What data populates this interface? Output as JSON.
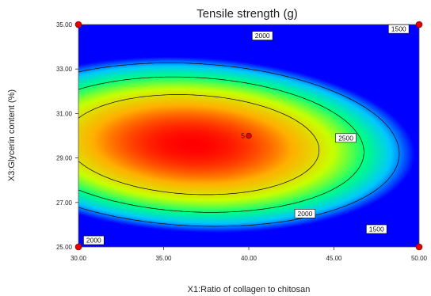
{
  "chart_data": {
    "type": "heatmap",
    "title": "Tensile strength (g)",
    "xlabel": "X1:Ratio of collagen to chitosan",
    "ylabel": "X3:Glycerin content (%)",
    "xlim": [
      30,
      50
    ],
    "ylim": [
      25,
      35
    ],
    "x_ticks": [
      "30.00",
      "35.00",
      "40.00",
      "45.00",
      "50.00"
    ],
    "y_ticks": [
      "25.00",
      "27.00",
      "29.00",
      "31.00",
      "33.00",
      "35.00"
    ],
    "color_scale": [
      "#0000ff",
      "#00c8ff",
      "#00ff80",
      "#c8ff00",
      "#ffb000",
      "#ff0000"
    ],
    "surface_peak": {
      "x": 36.7,
      "y": 29.6
    },
    "contour_levels": [
      1500,
      2000,
      2500
    ],
    "contour_labels": [
      {
        "text": "2000",
        "x": 40.8,
        "y": 34.5
      },
      {
        "text": "1500",
        "x": 48.8,
        "y": 34.8
      },
      {
        "text": "2500",
        "x": 45.7,
        "y": 29.9
      },
      {
        "text": "2000",
        "x": 43.3,
        "y": 26.5
      },
      {
        "text": "1500",
        "x": 47.5,
        "y": 25.8
      },
      {
        "text": "2000",
        "x": 30.9,
        "y": 25.3
      }
    ],
    "center_point": {
      "x": 40,
      "y": 30,
      "label": "5"
    },
    "design_points": [
      {
        "x": 30,
        "y": 25
      },
      {
        "x": 50,
        "y": 25
      },
      {
        "x": 30,
        "y": 35
      },
      {
        "x": 50,
        "y": 35
      }
    ]
  }
}
